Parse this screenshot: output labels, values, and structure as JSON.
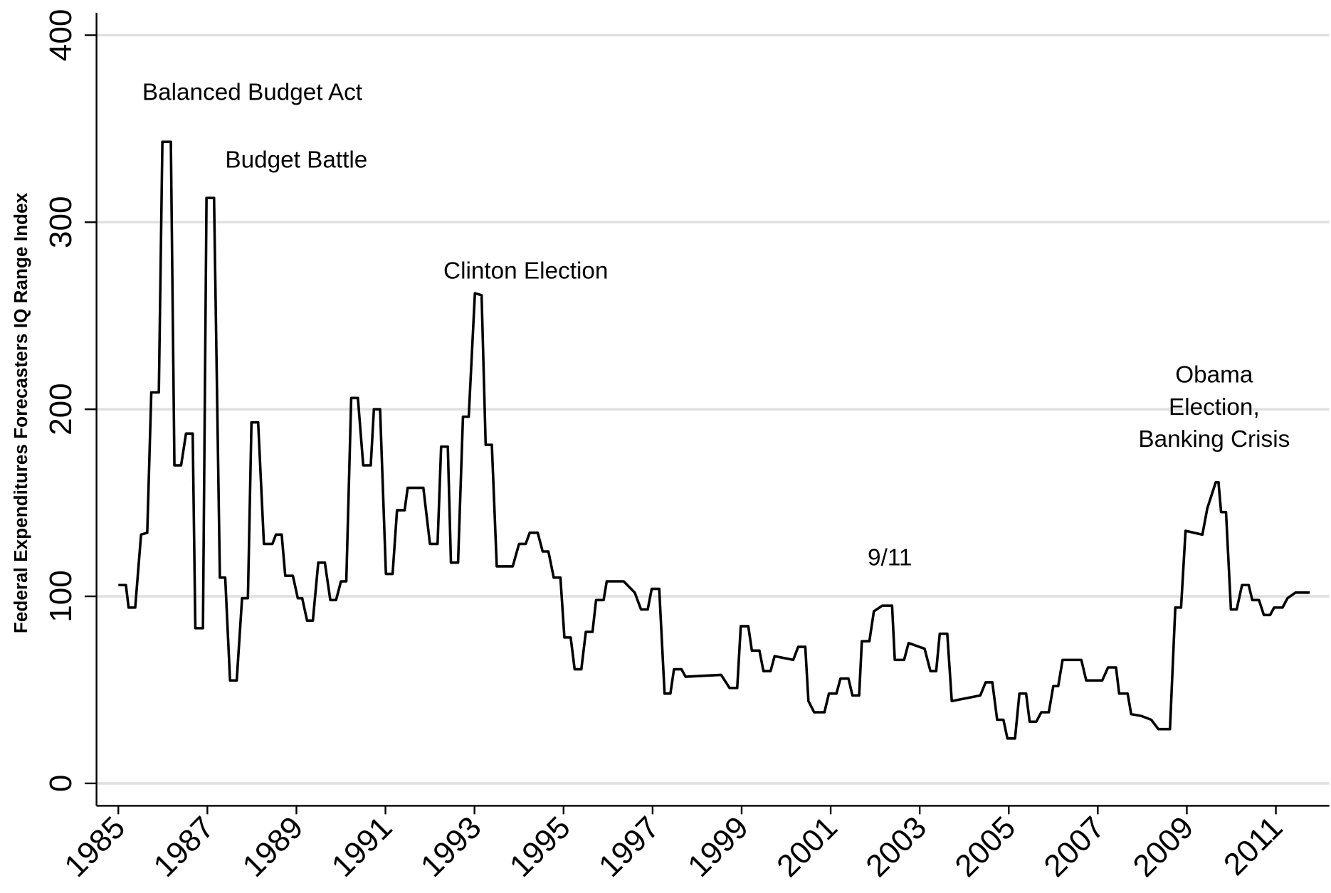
{
  "chart_data": {
    "type": "line",
    "y_label": "Federal Expenditures  Forecasters IQ Range Index",
    "annotations": [
      [
        "Balanced Budget Act"
      ],
      [
        "Budget Battle"
      ],
      [
        "Clinton Election"
      ],
      [
        "9/11"
      ],
      [
        "Obama",
        "Election,",
        "Banking Crisis"
      ]
    ],
    "xlim": [
      1984.51,
      2012.2
    ],
    "xticks": [
      1985,
      1987,
      1989,
      1991,
      1993,
      1995,
      1997,
      1999,
      2001,
      2003,
      2005,
      2007,
      2009,
      2011
    ],
    "ylim": [
      -12,
      412
    ],
    "yticks": [
      0,
      100,
      200,
      300,
      400
    ],
    "grid": true,
    "series": [
      {
        "color": "#000000",
        "x": [
          1985.0,
          1985.17,
          1985.23,
          1985.38,
          1985.51,
          1985.65,
          1985.74,
          1985.91,
          1985.99,
          1986.18,
          1986.26,
          1986.41,
          1986.52,
          1986.67,
          1986.73,
          1986.9,
          1986.98,
          1987.15,
          1987.28,
          1987.4,
          1987.51,
          1987.66,
          1987.78,
          1987.91,
          1987.99,
          1988.14,
          1988.27,
          1988.46,
          1988.54,
          1988.67,
          1988.75,
          1988.92,
          1989.03,
          1989.13,
          1989.24,
          1989.37,
          1989.49,
          1989.64,
          1989.76,
          1989.89,
          1990.0,
          1990.12,
          1990.23,
          1990.38,
          1990.5,
          1990.67,
          1990.74,
          1990.88,
          1991.01,
          1991.16,
          1991.26,
          1991.43,
          1991.5,
          1991.85,
          1992.0,
          1992.17,
          1992.25,
          1992.4,
          1992.47,
          1992.63,
          1992.74,
          1992.87,
          1993.01,
          1993.16,
          1993.25,
          1993.39,
          1993.5,
          1993.86,
          1994.0,
          1994.15,
          1994.24,
          1994.42,
          1994.53,
          1994.66,
          1994.78,
          1994.93,
          1995.02,
          1995.16,
          1995.25,
          1995.4,
          1995.5,
          1995.65,
          1995.73,
          1995.9,
          1995.97,
          1996.35,
          1996.6,
          1996.74,
          1996.89,
          1996.98,
          1997.15,
          1997.27,
          1997.4,
          1997.48,
          1997.65,
          1997.74,
          1998.54,
          1998.73,
          1998.9,
          1998.98,
          1999.15,
          1999.23,
          1999.4,
          1999.49,
          1999.65,
          1999.74,
          2000.16,
          2000.27,
          2000.43,
          2000.5,
          2000.63,
          2000.86,
          2000.96,
          2001.13,
          2001.22,
          2001.4,
          2001.49,
          2001.64,
          2001.7,
          2001.87,
          2001.97,
          2002.16,
          2002.38,
          2002.44,
          2002.65,
          2002.75,
          2003.11,
          2003.24,
          2003.37,
          2003.45,
          2003.62,
          2003.72,
          2004.36,
          2004.48,
          2004.63,
          2004.74,
          2004.88,
          2004.97,
          2005.14,
          2005.24,
          2005.39,
          2005.47,
          2005.62,
          2005.73,
          2005.9,
          2006.0,
          2006.11,
          2006.21,
          2006.63,
          2006.74,
          2007.1,
          2007.23,
          2007.41,
          2007.48,
          2007.67,
          2007.75,
          2007.98,
          2008.2,
          2008.36,
          2008.62,
          2008.74,
          2008.87,
          2008.97,
          2009.35,
          2009.46,
          2009.65,
          2009.71,
          2009.77,
          2009.88,
          2009.99,
          2010.12,
          2010.24,
          2010.39,
          2010.47,
          2010.62,
          2010.73,
          2010.87,
          2010.96,
          2011.15,
          2011.26,
          2011.44,
          2011.76
        ],
        "values": [
          106,
          106,
          94,
          94,
          133,
          134,
          209,
          209,
          343,
          343,
          170,
          170,
          187,
          187,
          83,
          83,
          313,
          313,
          110,
          110,
          55,
          55,
          99,
          99,
          193,
          193,
          128,
          128,
          133,
          133,
          111,
          111,
          99,
          99,
          87,
          87,
          118,
          118,
          98,
          98,
          108,
          108,
          206,
          206,
          170,
          170,
          200,
          200,
          112,
          112,
          146,
          146,
          158,
          158,
          128,
          128,
          180,
          180,
          118,
          118,
          196,
          196,
          262,
          261,
          181,
          181,
          116,
          116,
          128,
          128,
          134,
          134,
          124,
          124,
          110,
          110,
          78,
          78,
          61,
          61,
          81,
          81,
          98,
          98,
          108,
          108,
          102,
          93,
          93,
          104,
          104,
          48,
          48,
          61,
          61,
          57,
          58,
          51,
          51,
          84,
          84,
          71,
          71,
          60,
          60,
          68,
          66,
          73,
          73,
          44,
          38,
          38,
          48,
          48,
          56,
          56,
          47,
          47,
          76,
          76,
          92,
          95,
          95,
          66,
          66,
          75,
          72,
          60,
          60,
          80,
          80,
          44,
          47,
          54,
          54,
          34,
          34,
          24,
          24,
          48,
          48,
          33,
          33,
          38,
          38,
          52,
          52,
          66,
          66,
          55,
          55,
          62,
          62,
          48,
          48,
          37,
          36,
          34,
          29,
          29,
          94,
          94,
          135,
          133,
          147,
          161,
          161,
          145,
          145,
          93,
          93,
          106,
          106,
          98,
          98,
          90,
          90,
          94,
          94,
          99,
          102,
          102
        ]
      }
    ]
  }
}
